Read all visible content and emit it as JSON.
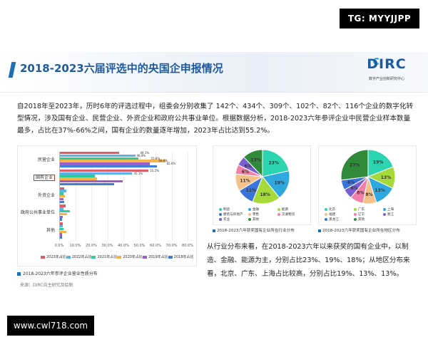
{
  "badge": "TG: MYYJJPP",
  "watermark": "www.cwl718.com",
  "header": {
    "title": "2018-2023六届评选中的央国企申报情况"
  },
  "logo": {
    "text": "DIRC",
    "sub": "数字产业创新研究中心"
  },
  "intro": "自2018年至2023年，历时6年的评选过程中，组委会分别收集了 142个、434个、309个、102个、82个、116个企业的数字化转型情况，涉及国有企业、民营企业、外资企业和政府公共事业单位。根据数据分析，2018-2023六年参评企业中民营企业样本数量最多，占比在37%-66%之间，国有企业的数量逐年增加，2023年占比达到55.2%。",
  "bar_caption": "2018-2023六年参评企业营业性质分布",
  "source": "来源：DIRC自主研究及绘制",
  "conclusion": "从行业分布来看，在2018-2023六年以来获奖的国有企业中，以制造、金融、能源为主，分别占比23%、19%、18%；从地区分布来看，北京、广东、上海占比较高，分别占比19%、13%、13%。",
  "colors": {
    "accent": "#1f6fb6",
    "title": "#1e5a9e"
  },
  "chart_data": [
    {
      "type": "bar",
      "orientation": "horizontal",
      "categories": [
        "民营企业",
        "国有企业",
        "外资企业",
        "政府公共事业单位",
        "其他"
      ],
      "highlighted_category": "国有企业",
      "series": [
        {
          "name": "2023年占比",
          "color": "#e05a6a",
          "values": [
            37.1,
            55.2,
            2.6,
            3.4,
            1.7
          ]
        },
        {
          "name": "2022年占比",
          "color": "#5ab4e5",
          "values": [
            46.9,
            45.1,
            3.8,
            2.4,
            1.8
          ]
        },
        {
          "name": "2021年占比",
          "color": "#2ecc9a",
          "values": [
            49.1,
            21.6,
            2.3,
            6.1,
            2.1
          ]
        },
        {
          "name": "2020年占比",
          "color": "#f5b34a",
          "values": [
            65.6,
            23.1,
            2.9,
            4.6,
            3.9
          ]
        },
        {
          "name": "2019年占比",
          "color": "#a05cc8",
          "values": [
            55.8,
            38.9,
            2.3,
            1.6,
            1.4
          ]
        },
        {
          "name": "2018年占比",
          "color": "#3d7fd6",
          "values": [
            60.6,
            33.8,
            2.8,
            1.4,
            1.4
          ]
        }
      ],
      "value_labels": {
        "民营企业": [
          "49.1%",
          "46.9%",
          "55.8%",
          "60.6%",
          "65.6%"
        ],
        "国有企业": [
          "55.2%",
          "45.1%"
        ]
      },
      "xticks": [
        "0.0%",
        "10.0%",
        "20.0%",
        "30.0%",
        "40.0%",
        "50.0%",
        "60.0%",
        "70.0%",
        "80.0%"
      ],
      "xlim": [
        0,
        80
      ],
      "legend": "bottom"
    },
    {
      "type": "pie",
      "caption": "2018-2023六年获奖国有企业所在行业分布",
      "slices": [
        {
          "label": "制造",
          "value": 23,
          "color": "#2dd4b0"
        },
        {
          "label": "金融",
          "value": 19,
          "color": "#2fa8e0"
        },
        {
          "label": "能源",
          "value": 18,
          "color": "#a6d93a"
        },
        {
          "label": "建筑与房地产",
          "value": 11,
          "color": "#3a73d9"
        },
        {
          "label": "零售",
          "value": 11,
          "color": "#f4c28a"
        },
        {
          "label": "交通物流",
          "value": 6,
          "color": "#f47fa8"
        },
        {
          "label": "农业",
          "value": 6,
          "color": "#7a5fd0"
        },
        {
          "label": "其他",
          "value": 13,
          "color": "#2f8a3a"
        }
      ],
      "labels_shown": [
        "23%",
        "19%",
        "18%",
        "11%",
        "11%",
        "6%",
        "6%",
        "13%"
      ]
    },
    {
      "type": "pie",
      "caption": "2018-2023六年获奖国有企业所在地区分布",
      "slices": [
        {
          "label": "北京",
          "value": 19,
          "color": "#2dd4b0"
        },
        {
          "label": "广东",
          "value": 13,
          "color": "#a6d93a"
        },
        {
          "label": "上海",
          "value": 13,
          "color": "#2fa8e0"
        },
        {
          "label": "福建",
          "value": 8,
          "color": "#f4c28a"
        },
        {
          "label": "辽宁",
          "value": 8,
          "color": "#f47fa8"
        },
        {
          "label": "浙江",
          "value": 6,
          "color": "#7a5fd0"
        },
        {
          "label": "黑龙江",
          "value": 6,
          "color": "#3a73d9"
        },
        {
          "label": "其他",
          "value": 27,
          "color": "#2f8a3a"
        }
      ],
      "labels_shown": [
        "19%",
        "13%",
        "13%",
        "8%",
        "8%",
        "6%",
        "6%",
        "27%"
      ]
    }
  ]
}
